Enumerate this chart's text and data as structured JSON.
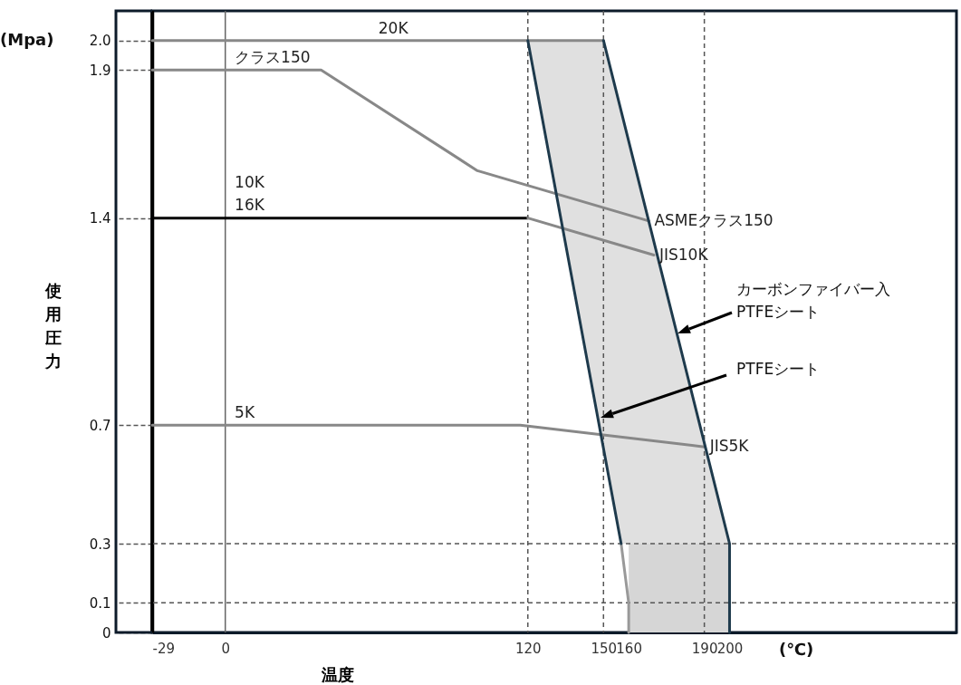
{
  "chart_data": {
    "type": "line",
    "xlabel": "温度",
    "ylabel": "使用圧力",
    "xlim": [
      -29,
      290
    ],
    "ylim": [
      0,
      2.1
    ],
    "xticks": [
      -29,
      0,
      120,
      150,
      160,
      190,
      200
    ],
    "yticks": [
      0,
      0.1,
      0.3,
      0.7,
      1.4,
      1.9,
      {
        "value": 2,
        "label": "2.0"
      }
    ],
    "grid": false,
    "marker": "none",
    "line_style": "solid",
    "series": [
      {
        "type": "area",
        "color": "#e0e0e0",
        "x": [
          120,
          150,
          200,
          157
        ],
        "values": [
          2,
          2,
          0.3,
          0.3
        ]
      },
      {
        "type": "area",
        "color": "#d6d6d6",
        "x": [
          160,
          200,
          200,
          160
        ],
        "values": [
          0,
          0,
          0.3,
          0.3
        ]
      },
      {
        "color": "#888888",
        "x": [
          -29,
          150
        ],
        "values": [
          2,
          2
        ]
      },
      {
        "color": "#888888",
        "x": [
          -29,
          38,
          100,
          168
        ],
        "values": [
          1.9,
          1.9,
          1.56,
          1.39
        ]
      },
      {
        "color": "#000000",
        "x": [
          -29,
          120
        ],
        "values": [
          1.4,
          1.4
        ]
      },
      {
        "color": "#888888",
        "x": [
          120,
          170
        ],
        "values": [
          1.4,
          1.275
        ]
      },
      {
        "color": "#888888",
        "x": [
          -29,
          117,
          190
        ],
        "values": [
          0.7,
          0.7,
          0.627
        ]
      },
      {
        "color": "#999999",
        "x": [
          157,
          160,
          160
        ],
        "values": [
          0.3,
          0.1,
          0
        ]
      },
      {
        "color": "#1e3a4c",
        "x": [
          120,
          138.5,
          157
        ],
        "values": [
          2,
          1.15,
          0.3
        ]
      },
      {
        "color": "#1e3a4c",
        "x": [
          150,
          165,
          200,
          200
        ],
        "values": [
          2,
          1.49,
          0.3,
          0
        ]
      }
    ],
    "ref_lines": [
      {
        "axis": "x",
        "value": -29,
        "color": "#000000",
        "line_style": "solid"
      },
      {
        "axis": "x",
        "value": 0,
        "color": "#666666",
        "line_style": "solid"
      },
      {
        "axis": "x",
        "value": 120,
        "color": "#555555",
        "line_style": "dashed"
      },
      {
        "axis": "x",
        "value": 150,
        "color": "#555555",
        "line_style": "dashed"
      },
      {
        "axis": "x",
        "value": 190,
        "color": "#555555",
        "line_style": "dashed"
      },
      {
        "axis": "y",
        "value": 0.3,
        "color": "#555555",
        "line_style": "dashed"
      },
      {
        "axis": "y",
        "value": 0.1,
        "color": "#555555",
        "line_style": "dashed"
      }
    ],
    "annotations": [
      "(Mpa)",
      "(℃)",
      {
        "text": "20K",
        "x": 60,
        "y": 2
      },
      {
        "text": "クラス150",
        "x": 3,
        "y": 1.9
      },
      {
        "text": "10K\n16K",
        "x": 3,
        "y": 1.4
      },
      {
        "text": "5K",
        "x": 3,
        "y": 0.7
      },
      {
        "text": "ASMEクラス150",
        "x": 168,
        "y": 1.39
      },
      {
        "text": "JIS10K",
        "x": 170,
        "y": 1.275
      },
      {
        "text": "JIS5K",
        "x": 190,
        "y": 0.627
      },
      "カーボンファイバー入\nPTFEシート",
      "PTFEシート"
    ]
  }
}
